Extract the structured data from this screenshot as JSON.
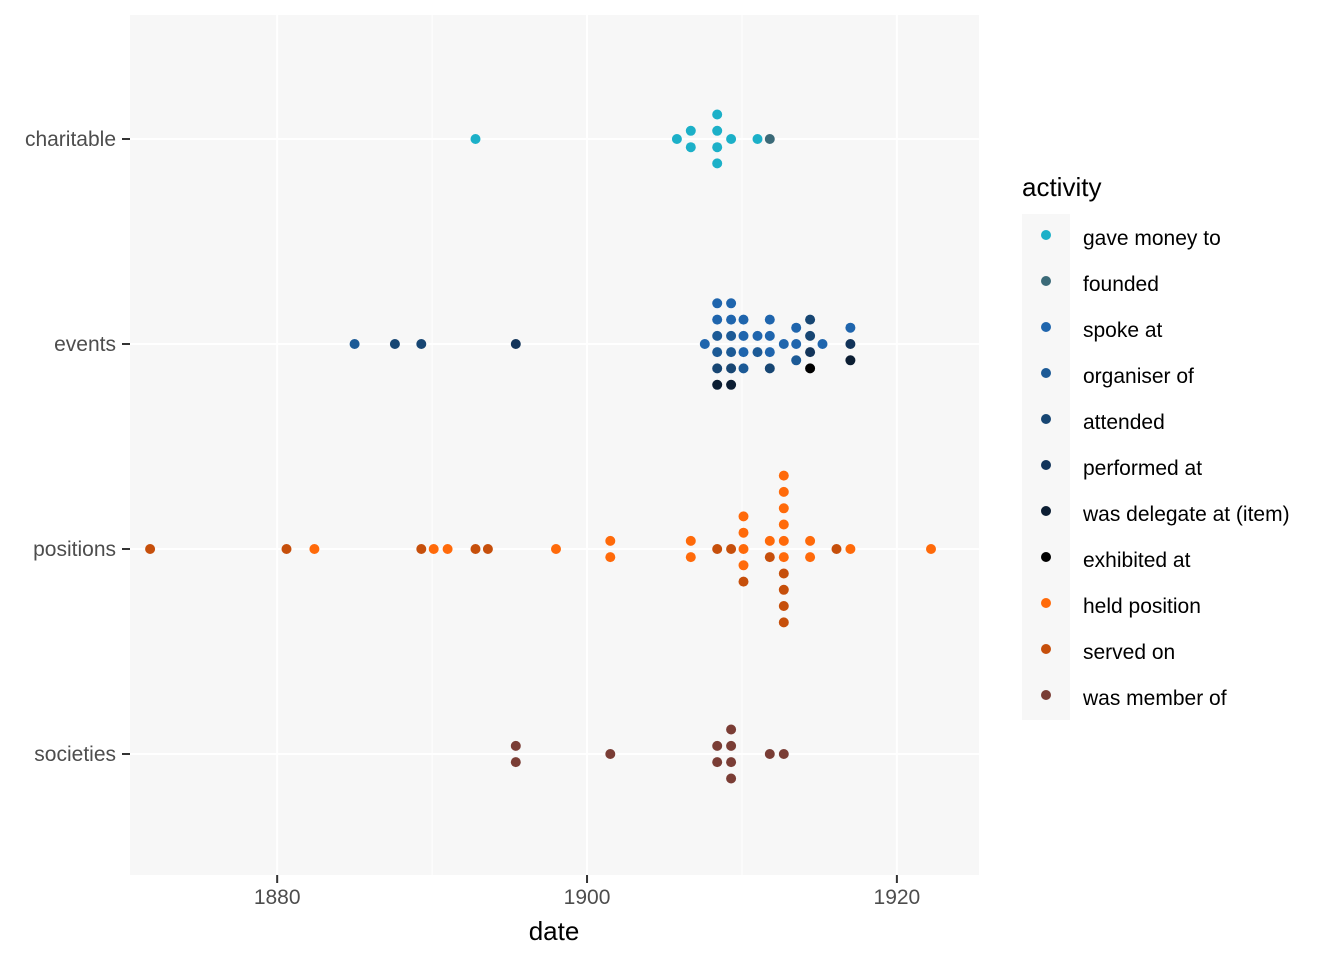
{
  "chart_data": {
    "type": "scatter",
    "title": "",
    "xlabel": "date",
    "ylabel": "",
    "xlim": [
      1870.5,
      1925.3
    ],
    "x_ticks": [
      1880,
      1900,
      1920
    ],
    "categories": [
      "charitable",
      "events",
      "positions",
      "societies"
    ],
    "grid": true,
    "background": "#F7F7F7",
    "grid_color": "#FFFFFF",
    "legend": {
      "title": "activity",
      "position": "right"
    },
    "series": [
      {
        "name": "gave money to",
        "color": "#1CB0C8",
        "points": [
          {
            "x": 1892.8,
            "y": "charitable"
          },
          {
            "x": 1905.8,
            "y": "charitable"
          },
          {
            "x": 1906.7,
            "y": "charitable"
          },
          {
            "x": 1906.7,
            "y": "charitable"
          },
          {
            "x": 1908.4,
            "y": "charitable"
          },
          {
            "x": 1908.4,
            "y": "charitable"
          },
          {
            "x": 1908.4,
            "y": "charitable"
          },
          {
            "x": 1908.4,
            "y": "charitable"
          },
          {
            "x": 1909.3,
            "y": "charitable"
          },
          {
            "x": 1911.0,
            "y": "charitable"
          }
        ]
      },
      {
        "name": "founded",
        "color": "#3B6A78",
        "points": [
          {
            "x": 1911.8,
            "y": "charitable"
          }
        ]
      },
      {
        "name": "spoke at",
        "color": "#1F65AD",
        "points": [
          {
            "x": 1907.6,
            "y": "events"
          },
          {
            "x": 1908.4,
            "y": "events"
          },
          {
            "x": 1908.4,
            "y": "events"
          },
          {
            "x": 1909.3,
            "y": "events"
          },
          {
            "x": 1909.3,
            "y": "events"
          },
          {
            "x": 1910.1,
            "y": "events"
          },
          {
            "x": 1910.1,
            "y": "events"
          },
          {
            "x": 1910.1,
            "y": "events"
          },
          {
            "x": 1911.0,
            "y": "events"
          },
          {
            "x": 1911.8,
            "y": "events"
          },
          {
            "x": 1911.8,
            "y": "events"
          },
          {
            "x": 1911.8,
            "y": "events"
          },
          {
            "x": 1912.7,
            "y": "events"
          },
          {
            "x": 1913.5,
            "y": "events"
          },
          {
            "x": 1913.5,
            "y": "events"
          },
          {
            "x": 1915.2,
            "y": "events"
          },
          {
            "x": 1917.0,
            "y": "events"
          }
        ]
      },
      {
        "name": "organiser of",
        "color": "#1C5A96",
        "points": [
          {
            "x": 1885.0,
            "y": "events"
          },
          {
            "x": 1908.4,
            "y": "events"
          },
          {
            "x": 1908.4,
            "y": "events"
          },
          {
            "x": 1909.3,
            "y": "events"
          },
          {
            "x": 1909.3,
            "y": "events"
          },
          {
            "x": 1910.1,
            "y": "events"
          },
          {
            "x": 1911.0,
            "y": "events"
          },
          {
            "x": 1913.5,
            "y": "events"
          }
        ]
      },
      {
        "name": "attended",
        "color": "#174673",
        "points": [
          {
            "x": 1887.6,
            "y": "events"
          },
          {
            "x": 1889.3,
            "y": "events"
          },
          {
            "x": 1908.4,
            "y": "events"
          },
          {
            "x": 1909.3,
            "y": "events"
          },
          {
            "x": 1911.8,
            "y": "events"
          },
          {
            "x": 1914.4,
            "y": "events"
          },
          {
            "x": 1914.4,
            "y": "events"
          }
        ]
      },
      {
        "name": "performed at",
        "color": "#12345A",
        "points": [
          {
            "x": 1895.4,
            "y": "events"
          },
          {
            "x": 1914.4,
            "y": "events"
          },
          {
            "x": 1917.0,
            "y": "events"
          }
        ]
      },
      {
        "name": "was delegate at (item)",
        "color": "#0C1E33",
        "points": [
          {
            "x": 1908.4,
            "y": "events"
          },
          {
            "x": 1909.3,
            "y": "events"
          },
          {
            "x": 1917.0,
            "y": "events"
          }
        ]
      },
      {
        "name": "exhibited at",
        "color": "#000000",
        "points": [
          {
            "x": 1914.4,
            "y": "events"
          }
        ]
      },
      {
        "name": "held position",
        "color": "#FF6A0A",
        "points": [
          {
            "x": 1882.4,
            "y": "positions"
          },
          {
            "x": 1890.1,
            "y": "positions"
          },
          {
            "x": 1891.0,
            "y": "positions"
          },
          {
            "x": 1898.0,
            "y": "positions"
          },
          {
            "x": 1901.5,
            "y": "positions"
          },
          {
            "x": 1901.5,
            "y": "positions"
          },
          {
            "x": 1906.7,
            "y": "positions"
          },
          {
            "x": 1906.7,
            "y": "positions"
          },
          {
            "x": 1910.1,
            "y": "positions"
          },
          {
            "x": 1910.1,
            "y": "positions"
          },
          {
            "x": 1910.1,
            "y": "positions"
          },
          {
            "x": 1910.1,
            "y": "positions"
          },
          {
            "x": 1911.8,
            "y": "positions"
          },
          {
            "x": 1912.7,
            "y": "positions"
          },
          {
            "x": 1912.7,
            "y": "positions"
          },
          {
            "x": 1912.7,
            "y": "positions"
          },
          {
            "x": 1912.7,
            "y": "positions"
          },
          {
            "x": 1912.7,
            "y": "positions"
          },
          {
            "x": 1912.7,
            "y": "positions"
          },
          {
            "x": 1914.4,
            "y": "positions"
          },
          {
            "x": 1914.4,
            "y": "positions"
          },
          {
            "x": 1917.0,
            "y": "positions"
          },
          {
            "x": 1922.2,
            "y": "positions"
          }
        ]
      },
      {
        "name": "served on",
        "color": "#C64F0B",
        "points": [
          {
            "x": 1871.8,
            "y": "positions"
          },
          {
            "x": 1880.6,
            "y": "positions"
          },
          {
            "x": 1889.3,
            "y": "positions"
          },
          {
            "x": 1892.8,
            "y": "positions"
          },
          {
            "x": 1893.6,
            "y": "positions"
          },
          {
            "x": 1908.4,
            "y": "positions"
          },
          {
            "x": 1909.3,
            "y": "positions"
          },
          {
            "x": 1910.1,
            "y": "positions"
          },
          {
            "x": 1911.8,
            "y": "positions"
          },
          {
            "x": 1912.7,
            "y": "positions"
          },
          {
            "x": 1912.7,
            "y": "positions"
          },
          {
            "x": 1912.7,
            "y": "positions"
          },
          {
            "x": 1912.7,
            "y": "positions"
          },
          {
            "x": 1916.1,
            "y": "positions"
          }
        ]
      },
      {
        "name": "was member of",
        "color": "#7A3D35",
        "points": [
          {
            "x": 1895.4,
            "y": "societies"
          },
          {
            "x": 1895.4,
            "y": "societies"
          },
          {
            "x": 1901.5,
            "y": "societies"
          },
          {
            "x": 1908.4,
            "y": "societies"
          },
          {
            "x": 1908.4,
            "y": "societies"
          },
          {
            "x": 1909.3,
            "y": "societies"
          },
          {
            "x": 1909.3,
            "y": "societies"
          },
          {
            "x": 1909.3,
            "y": "societies"
          },
          {
            "x": 1909.3,
            "y": "societies"
          },
          {
            "x": 1911.8,
            "y": "societies"
          },
          {
            "x": 1912.7,
            "y": "societies"
          }
        ]
      }
    ]
  }
}
